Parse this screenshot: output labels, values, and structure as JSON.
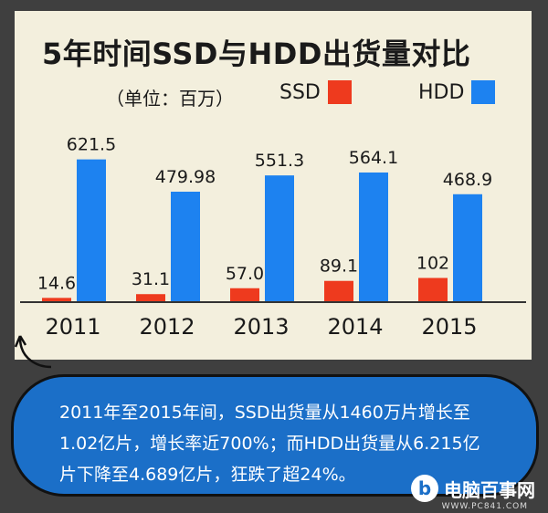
{
  "chart_data": {
    "type": "bar",
    "title": "5年时间SSD与HDD出货量对比",
    "subtitle": "（单位：百万）",
    "categories": [
      "2011",
      "2012",
      "2013",
      "2014",
      "2015"
    ],
    "series": [
      {
        "name": "SSD",
        "color": "#ee3a1e",
        "values": [
          14.6,
          31.1,
          57.0,
          89.1,
          102
        ],
        "labels": [
          "14.6",
          "31.1",
          "57.0",
          "89.1",
          "102"
        ]
      },
      {
        "name": "HDD",
        "color": "#1d82f0",
        "values": [
          621.5,
          479.98,
          551.3,
          564.1,
          468.9
        ],
        "labels": [
          "621.5",
          "479.98",
          "551.3",
          "564.1",
          "468.9"
        ]
      }
    ],
    "ylim": [
      0,
      680
    ],
    "grid": false,
    "legend_position": "top-right"
  },
  "note": {
    "line1": "2011年至2015年间，SSD出货量从1460万片增长至",
    "line2": "1.02亿片，增长率近700%；而HDD出货量从6.215亿",
    "line3": "片下降至4.689亿片，狂跌了超24%。"
  },
  "logo": {
    "mark": "b",
    "text": "电脑百事网",
    "sub": "WWW.PC841.COM"
  }
}
